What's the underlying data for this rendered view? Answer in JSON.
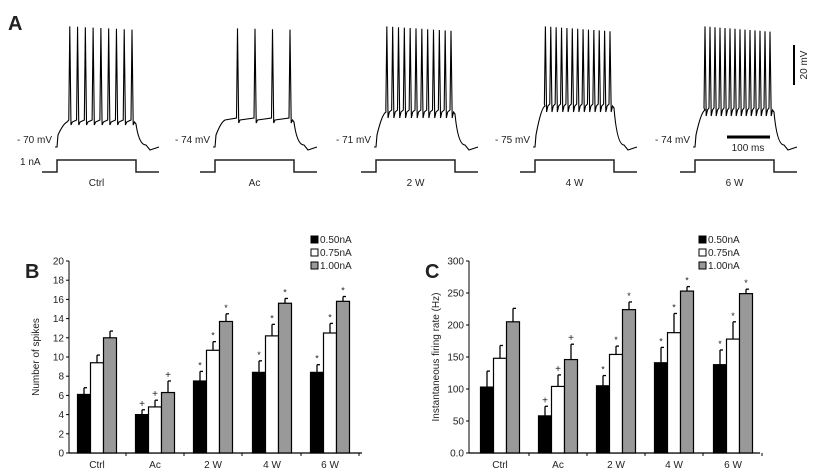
{
  "panel_a": {
    "label": "A",
    "traces": [
      {
        "condition": "Ctrl",
        "resting": "- 70 mV"
      },
      {
        "condition": "Ac",
        "resting": "- 74 mV"
      },
      {
        "condition": "2 W",
        "resting": "- 71 mV"
      },
      {
        "condition": "4 W",
        "resting": "- 75 mV"
      },
      {
        "condition": "6 W",
        "resting": "- 74 mV"
      }
    ],
    "current_label": "1 nA",
    "scale_voltage": "20 mV",
    "scale_time": "100 ms"
  },
  "chart_data": [
    {
      "panel_label": "B",
      "type": "bar",
      "ylabel": "Number of spikes",
      "ylim": [
        0,
        20
      ],
      "yticks": [
        "0",
        "2",
        "4",
        "6",
        "8",
        "10",
        "12",
        "14",
        "16",
        "18",
        "20"
      ],
      "categories": [
        "Ctrl",
        "Ac",
        "2 W",
        "4 W",
        "6 W"
      ],
      "legend_position": "top-right",
      "series": [
        {
          "name": "0.50nA",
          "color": "#000000",
          "values": [
            6.1,
            4.0,
            7.5,
            8.4,
            8.4
          ],
          "errors": [
            0.7,
            0.5,
            1.0,
            1.2,
            0.8
          ],
          "marks": [
            "",
            "+",
            "*",
            "*",
            "*"
          ]
        },
        {
          "name": "0.75nA",
          "color": "#ffffff",
          "values": [
            9.4,
            4.8,
            10.7,
            12.2,
            12.5
          ],
          "errors": [
            0.8,
            0.7,
            0.9,
            1.2,
            1.0
          ],
          "marks": [
            "",
            "+",
            "*",
            "*",
            "*"
          ]
        },
        {
          "name": "1.00nA",
          "color": "#999999",
          "values": [
            12.0,
            6.3,
            13.7,
            15.6,
            15.8
          ],
          "errors": [
            0.7,
            1.2,
            0.8,
            0.5,
            0.5
          ],
          "marks": [
            "",
            "+",
            "*",
            "*",
            "*"
          ]
        }
      ]
    },
    {
      "panel_label": "C",
      "type": "bar",
      "ylabel": "Instantaneous firing rate (Hz)",
      "ylim": [
        0,
        300
      ],
      "yticks": [
        "0.0",
        "50",
        "100",
        "150",
        "200",
        "250",
        "300"
      ],
      "categories": [
        "Ctrl",
        "Ac",
        "2 W",
        "4 W",
        "6 W"
      ],
      "legend_position": "top-right",
      "series": [
        {
          "name": "0.50nA",
          "color": "#000000",
          "values": [
            103,
            58,
            105,
            141,
            138
          ],
          "errors": [
            25,
            15,
            16,
            24,
            23
          ],
          "marks": [
            "",
            "+",
            "*",
            "*",
            "*"
          ]
        },
        {
          "name": "0.75nA",
          "color": "#ffffff",
          "values": [
            148,
            104,
            154,
            188,
            178
          ],
          "errors": [
            20,
            18,
            13,
            30,
            27
          ],
          "marks": [
            "",
            "+",
            "*",
            "*",
            "*"
          ]
        },
        {
          "name": "1.00nA",
          "color": "#999999",
          "values": [
            205,
            146,
            224,
            253,
            249
          ],
          "errors": [
            21,
            24,
            12,
            7,
            7
          ],
          "marks": [
            "",
            "+",
            "*",
            "*",
            "*"
          ]
        }
      ]
    }
  ]
}
